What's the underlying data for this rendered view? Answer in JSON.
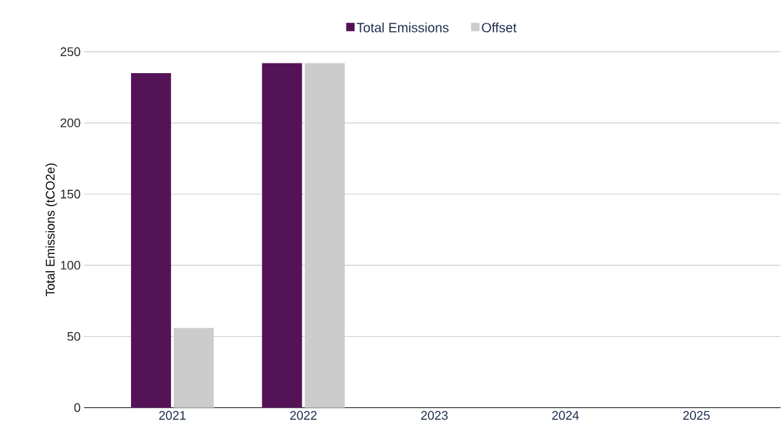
{
  "chart_data": {
    "type": "bar",
    "categories": [
      "2021",
      "2022",
      "2023",
      "2024",
      "2025"
    ],
    "ylabel": "Total Emissions (tCO2e)",
    "series": [
      {
        "name": "Total Emissions",
        "color": "#541357",
        "values": [
          235,
          242,
          null,
          null,
          null
        ]
      },
      {
        "name": "Offset",
        "color": "#cccccc",
        "values": [
          56,
          242,
          null,
          null,
          null
        ]
      }
    ],
    "ylim": [
      0,
      250
    ],
    "yticks": [
      0,
      50,
      100,
      150,
      200,
      250
    ],
    "grid": "y",
    "legend": "top"
  }
}
